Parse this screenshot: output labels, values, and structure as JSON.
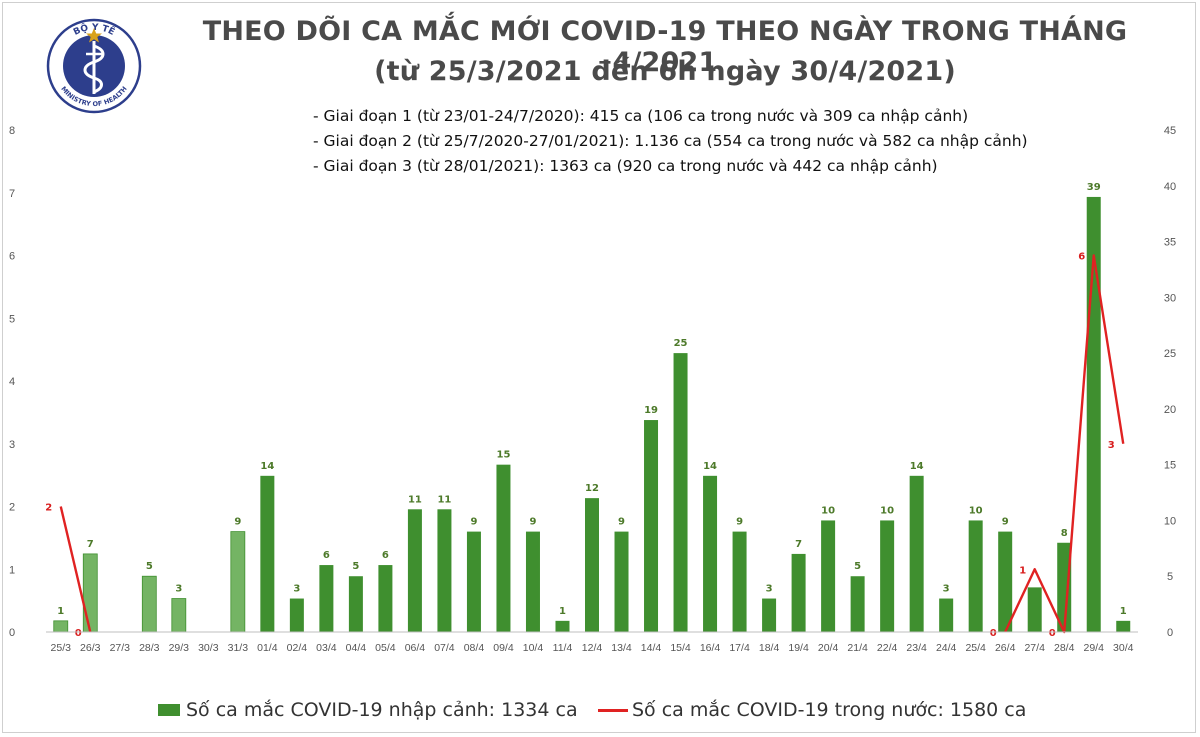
{
  "title": {
    "line1": "THEO DÕI CA MẮC MỚI COVID-19 THEO NGÀY TRONG THÁNG 4/2021",
    "line2": "(từ 25/3/2021 đến 6h ngày 30/4/2021)"
  },
  "logo": {
    "top_text": "BỘ Y TẾ",
    "bottom_text": "MINISTRY OF HEALTH",
    "colors": {
      "ring": "#2d3e8c",
      "star": "#d9a21b",
      "snake": "#ffffff"
    }
  },
  "notes": [
    "- Giai đoạn 1 (từ 23/01-24/7/2020): 415 ca (106 ca trong nước và 309 ca nhập cảnh)",
    "- Giai đoạn 2 (từ 25/7/2020-27/01/2021): 1.136 ca (554 ca trong nước và 582 ca nhập cảnh)",
    "- Giai đoạn 3 (từ 28/01/2021): 1363 ca (920 ca trong nước và 442 ca nhập cảnh)"
  ],
  "legend": {
    "bar": "Số ca mắc COVID-19 nhập cảnh: 1334 ca",
    "line": "Số ca mắc COVID-19 trong nước: 1580 ca"
  },
  "colors": {
    "bar_dark": "#3f8f2f",
    "bar_light": "#74b464",
    "line": "#e02222",
    "bar_label": "#4d7a2a",
    "line_label": "#d81e1e",
    "tick": "#555555"
  },
  "chart_data": {
    "type": "bar",
    "categories": [
      "25/3",
      "26/3",
      "27/3",
      "28/3",
      "29/3",
      "30/3",
      "31/3",
      "01/4",
      "02/4",
      "03/4",
      "04/4",
      "05/4",
      "06/4",
      "07/4",
      "08/4",
      "09/4",
      "10/4",
      "11/4",
      "12/4",
      "13/4",
      "14/4",
      "15/4",
      "16/4",
      "17/4",
      "18/4",
      "19/4",
      "20/4",
      "21/4",
      "22/4",
      "23/4",
      "24/4",
      "25/4",
      "26/4",
      "27/4",
      "28/4",
      "29/4",
      "30/4"
    ],
    "series": [
      {
        "name": "Số ca mắc COVID-19 nhập cảnh: 1334 ca",
        "type": "bar",
        "axis": "right",
        "values": [
          1,
          7,
          null,
          5,
          3,
          null,
          9,
          14,
          3,
          6,
          5,
          6,
          11,
          11,
          9,
          15,
          9,
          1,
          12,
          9,
          19,
          25,
          14,
          9,
          3,
          7,
          10,
          5,
          10,
          14,
          3,
          10,
          9,
          4,
          8,
          39,
          1
        ],
        "labels": [
          "1",
          "7",
          "",
          "5",
          "3",
          "",
          "9",
          "14",
          "3",
          "6",
          "5",
          "6",
          "11",
          "11",
          "9",
          "15",
          "9",
          "1",
          "12",
          "9",
          "19",
          "25",
          "14",
          "9",
          "3",
          "7",
          "10",
          "5",
          "10",
          "14",
          "3",
          "10",
          "9",
          "",
          "8",
          "39",
          "1"
        ],
        "lighter_until_index": 6
      },
      {
        "name": "Số ca mắc COVID-19 trong nước: 1580 ca",
        "type": "line",
        "axis": "left",
        "points": [
          {
            "category": "25/3",
            "value": 2,
            "label": "2"
          },
          {
            "category": "26/3",
            "value": 0,
            "label": "0"
          },
          {
            "category": "26/4",
            "value": 0,
            "label": "0"
          },
          {
            "category": "27/4",
            "value": 1,
            "label": "1"
          },
          {
            "category": "28/4",
            "value": 0,
            "label": "0"
          },
          {
            "category": "29/4",
            "value": 6,
            "label": "6"
          },
          {
            "category": "30/4",
            "value": 3,
            "label": "3"
          }
        ]
      }
    ],
    "left_axis": {
      "ticks": [
        "0",
        "1",
        "2",
        "3",
        "4",
        "5",
        "6",
        "7",
        "8"
      ],
      "range": [
        0,
        8
      ]
    },
    "right_axis": {
      "ticks": [
        "0",
        "5",
        "10",
        "15",
        "20",
        "25",
        "30",
        "35",
        "40",
        "45"
      ],
      "range": [
        0,
        45
      ]
    },
    "legend_position": "bottom",
    "grid": false
  }
}
